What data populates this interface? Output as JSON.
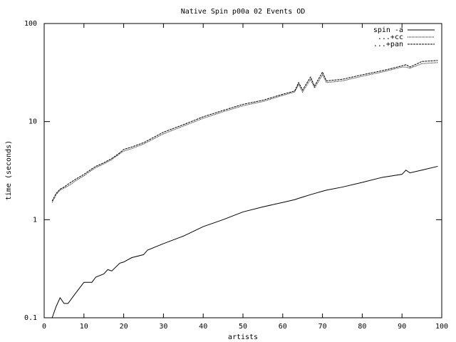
{
  "chart_data": {
    "type": "line",
    "title": "Native Spin p00a 02 Events OD",
    "x_label": "artists",
    "y_label": "time (seconds)",
    "x": [
      2,
      3,
      4,
      5,
      6,
      8,
      10,
      12,
      13,
      15,
      16,
      17,
      19,
      20,
      22,
      25,
      26,
      30,
      35,
      40,
      45,
      50,
      55,
      60,
      63,
      64,
      65,
      67,
      68,
      70,
      71,
      75,
      80,
      85,
      90,
      91,
      92,
      95,
      99
    ],
    "series": [
      {
        "name": "spin -a",
        "color": "#000000",
        "values": [
          0.1,
          0.13,
          0.16,
          0.14,
          0.14,
          0.18,
          0.23,
          0.23,
          0.26,
          0.28,
          0.31,
          0.3,
          0.36,
          0.37,
          0.41,
          0.44,
          0.49,
          0.57,
          0.68,
          0.85,
          1.0,
          1.2,
          1.35,
          1.5,
          1.6,
          1.65,
          1.7,
          1.8,
          1.85,
          1.95,
          2.0,
          2.15,
          2.4,
          2.7,
          2.9,
          3.2,
          3.0,
          3.2,
          3.5
        ]
      },
      {
        "name": "...+cc",
        "color": "#000000",
        "values": [
          1.5,
          1.8,
          2.0,
          2.1,
          2.2,
          2.5,
          2.8,
          3.2,
          3.4,
          3.7,
          3.9,
          4.1,
          4.7,
          5.0,
          5.3,
          5.9,
          6.2,
          7.5,
          9.0,
          10.8,
          12.6,
          14.5,
          16,
          18.5,
          20,
          24,
          20,
          27,
          22,
          30,
          25,
          26,
          29,
          32,
          36,
          36,
          35,
          39,
          40
        ]
      },
      {
        "name": "...+pan",
        "color": "#000000",
        "values": [
          1.55,
          1.85,
          2.05,
          2.15,
          2.3,
          2.6,
          2.9,
          3.3,
          3.5,
          3.8,
          4.0,
          4.2,
          4.8,
          5.2,
          5.5,
          6.1,
          6.4,
          7.8,
          9.3,
          11.2,
          13,
          15,
          16.5,
          19,
          20.5,
          25,
          21,
          28.5,
          23,
          32,
          26,
          27,
          30,
          33,
          37,
          38,
          36,
          41,
          42
        ]
      }
    ],
    "dash": [
      "none",
      "1,1",
      "3,1"
    ],
    "xlim": [
      0,
      100
    ],
    "xticks": [
      0,
      10,
      20,
      30,
      40,
      50,
      60,
      70,
      80,
      90,
      100
    ],
    "ylim": [
      0.1,
      100
    ],
    "yticks": [
      0.1,
      1,
      10,
      100
    ],
    "log_y": true,
    "grid": false,
    "legend": "top-right"
  }
}
